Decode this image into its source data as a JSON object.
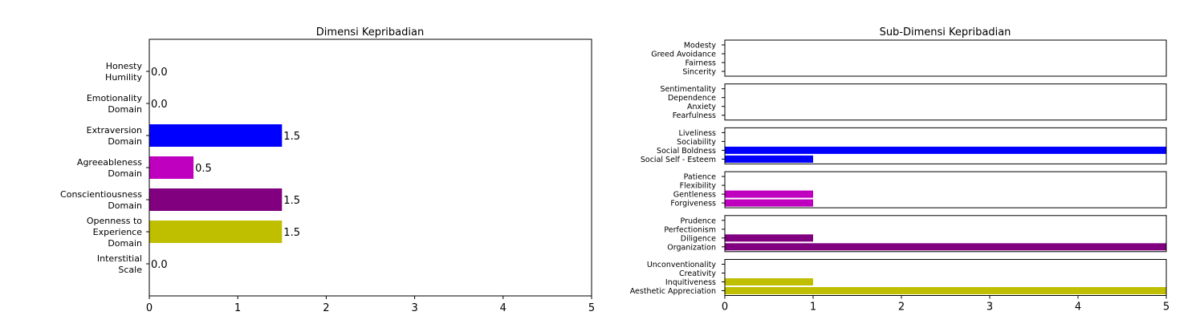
{
  "chart_data": [
    {
      "type": "bar",
      "orientation": "horizontal",
      "title": "Dimensi Kepribadian",
      "xlabel": "",
      "ylabel": "",
      "xlim": [
        0,
        5
      ],
      "x_ticks": [
        "0",
        "1",
        "2",
        "3",
        "4",
        "5"
      ],
      "grid": false,
      "categories": [
        "Honesty\nHumility",
        "Emotionality\nDomain",
        "Extraversion\nDomain",
        "Agreeableness\nDomain",
        "Conscientiousness\nDomain",
        "Openness to\nExperience\nDomain",
        "Interstitial\nScale"
      ],
      "values": [
        0.0,
        0.0,
        1.5,
        0.5,
        1.5,
        1.5,
        0.0
      ],
      "value_labels": [
        "0.0",
        "0.0",
        "1.5",
        "0.5",
        "1.5",
        "1.5",
        "0.0"
      ],
      "colors": [
        "#ff0000",
        "#008000",
        "#0000ff",
        "#bf00bf",
        "#800080",
        "#bfbf00",
        "#00bfbf"
      ]
    },
    {
      "type": "bar",
      "orientation": "horizontal",
      "title": "Sub-Dimensi Kepribadian",
      "xlabel": "",
      "ylabel": "",
      "xlim": [
        0,
        5
      ],
      "x_ticks": [
        "0",
        "1",
        "2",
        "3",
        "4",
        "5"
      ],
      "grid": false,
      "panels": [
        {
          "color": "#ff0000",
          "categories": [
            "Modesty",
            "Greed Avoidance",
            "Fairness",
            "Sincerity"
          ],
          "values": [
            0,
            0,
            0,
            0
          ]
        },
        {
          "color": "#008000",
          "categories": [
            "Sentimentality",
            "Dependence",
            "Anxiety",
            "Fearfulness"
          ],
          "values": [
            0,
            0,
            0,
            0
          ]
        },
        {
          "color": "#0000ff",
          "categories": [
            "Liveliness",
            "Sociability",
            "Social Boldness",
            "Social Self - Esteem"
          ],
          "values": [
            0,
            0,
            5,
            1
          ]
        },
        {
          "color": "#bf00bf",
          "categories": [
            "Patience",
            "Flexibility",
            "Gentleness",
            "Forgiveness"
          ],
          "values": [
            0,
            0,
            1,
            1
          ]
        },
        {
          "color": "#800080",
          "categories": [
            "Prudence",
            "Perfectionism",
            "Diligence",
            "Organization"
          ],
          "values": [
            0,
            0,
            1,
            5
          ]
        },
        {
          "color": "#bfbf00",
          "categories": [
            "Unconventionality",
            "Creativity",
            "Inquitiveness",
            "Aesthetic Appreciation"
          ],
          "values": [
            0,
            0,
            1,
            5
          ]
        }
      ]
    }
  ]
}
